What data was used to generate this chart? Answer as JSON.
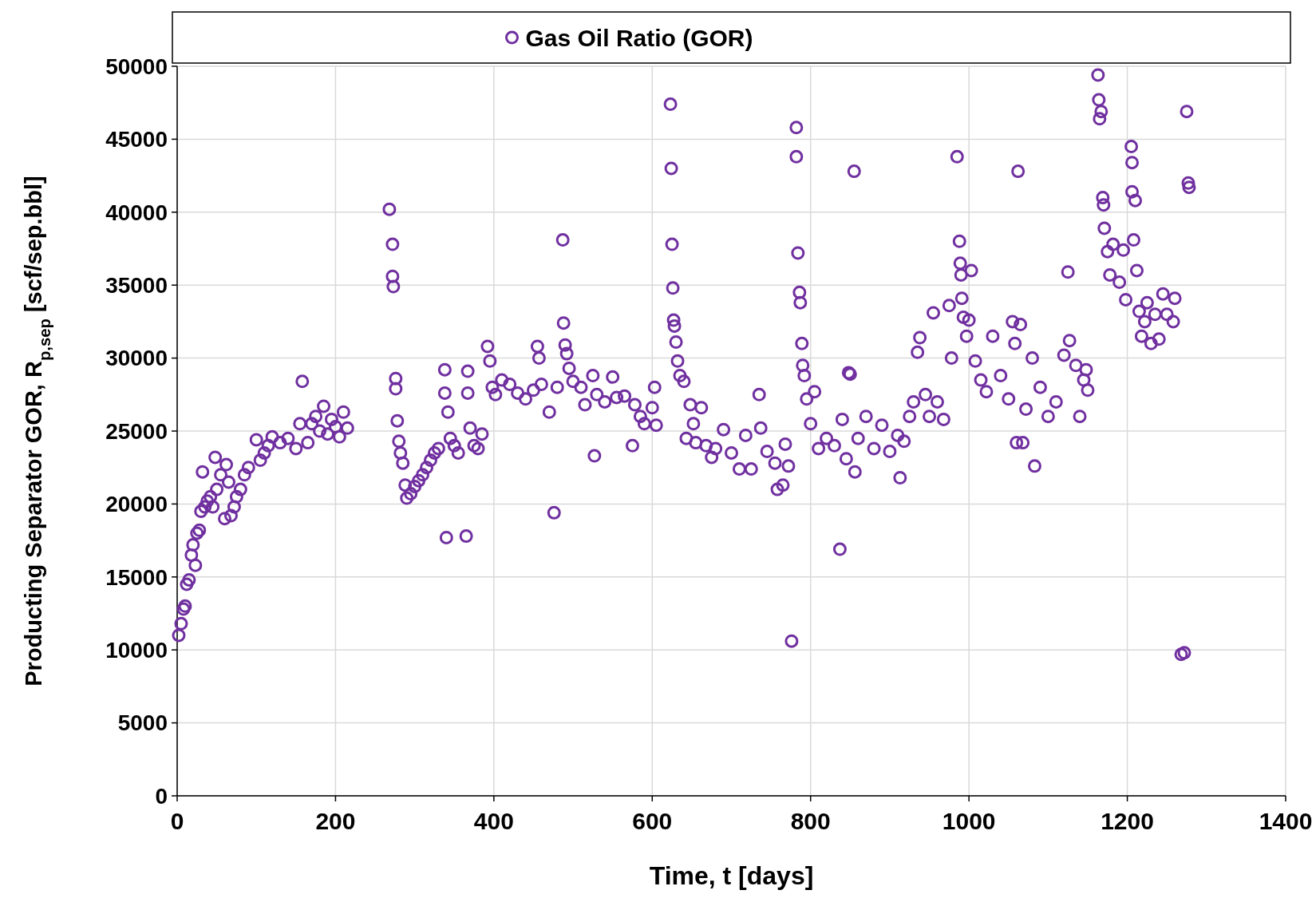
{
  "chart_data": {
    "type": "scatter",
    "xlabel": "Time, t [days]",
    "ylabel": "Producting Separator GOR, R$_{p,sep}$ [scf/sep.bbl]",
    "xlim": [
      0,
      1400
    ],
    "xticks": [
      0,
      200,
      400,
      600,
      800,
      1000,
      1200,
      1400
    ],
    "ylim": [
      0,
      50000
    ],
    "yticks": [
      0,
      5000,
      10000,
      15000,
      20000,
      25000,
      30000,
      35000,
      40000,
      45000,
      50000
    ],
    "grid": true,
    "legend": "top",
    "marker": "circle",
    "series": [
      {
        "name": "Gas Oil Ratio (GOR)",
        "color": "#7030a0",
        "x": [
          2,
          5,
          8,
          10,
          12,
          15,
          18,
          20,
          23,
          25,
          28,
          30,
          32,
          35,
          38,
          42,
          45,
          48,
          50,
          55,
          60,
          62,
          65,
          68,
          72,
          75,
          80,
          85,
          90,
          100,
          105,
          110,
          115,
          120,
          130,
          140,
          150,
          155,
          158,
          165,
          170,
          175,
          180,
          185,
          190,
          195,
          200,
          205,
          210,
          215,
          268,
          272,
          272,
          273,
          276,
          276,
          278,
          280,
          282,
          285,
          288,
          290,
          295,
          300,
          305,
          310,
          315,
          320,
          325,
          330,
          338,
          338,
          340,
          342,
          345,
          350,
          355,
          365,
          367,
          367,
          370,
          375,
          380,
          385,
          392,
          395,
          398,
          402,
          410,
          420,
          430,
          440,
          450,
          455,
          457,
          460,
          470,
          476,
          480,
          487,
          488,
          490,
          492,
          495,
          500,
          510,
          515,
          525,
          527,
          530,
          540,
          550,
          555,
          565,
          575,
          578,
          585,
          590,
          600,
          603,
          605,
          623,
          624,
          625,
          626,
          627,
          628,
          630,
          632,
          635,
          640,
          643,
          648,
          652,
          655,
          662,
          668,
          675,
          680,
          690,
          700,
          710,
          718,
          725,
          735,
          737,
          745,
          755,
          758,
          765,
          768,
          772,
          776,
          782,
          782,
          784,
          786,
          787,
          789,
          790,
          792,
          795,
          800,
          805,
          810,
          820,
          830,
          837,
          840,
          845,
          848,
          850,
          855,
          856,
          860,
          870,
          880,
          890,
          900,
          910,
          913,
          918,
          925,
          930,
          935,
          938,
          945,
          950,
          955,
          960,
          968,
          975,
          978,
          985,
          988,
          989,
          990,
          991,
          993,
          997,
          1000,
          1003,
          1008,
          1015,
          1022,
          1030,
          1040,
          1050,
          1055,
          1058,
          1060,
          1062,
          1065,
          1068,
          1072,
          1080,
          1083,
          1090,
          1100,
          1110,
          1120,
          1125,
          1127,
          1135,
          1140,
          1145,
          1148,
          1150,
          1163,
          1164,
          1165,
          1167,
          1169,
          1170,
          1171,
          1175,
          1178,
          1182,
          1190,
          1195,
          1198,
          1205,
          1206,
          1206,
          1208,
          1210,
          1212,
          1215,
          1218,
          1222,
          1225,
          1230,
          1235,
          1240,
          1245,
          1250,
          1258,
          1260,
          1268,
          1272,
          1275,
          1277,
          1278
        ],
        "values": [
          11000,
          11800,
          12800,
          13000,
          14500,
          14800,
          16500,
          17200,
          15800,
          18000,
          18200,
          19500,
          22200,
          19800,
          20200,
          20500,
          19800,
          23200,
          21000,
          22000,
          19000,
          22700,
          21500,
          19200,
          19800,
          20500,
          21000,
          22000,
          22500,
          24400,
          23000,
          23500,
          24000,
          24600,
          24200,
          24500,
          23800,
          25500,
          28400,
          24200,
          25500,
          26000,
          25000,
          26700,
          24800,
          25800,
          25300,
          24600,
          26300,
          25200,
          40200,
          37800,
          35600,
          34900,
          28600,
          27900,
          25700,
          24300,
          23500,
          22800,
          21300,
          20400,
          20700,
          21200,
          21600,
          22000,
          22500,
          23000,
          23500,
          23800,
          29200,
          27600,
          17700,
          26300,
          24500,
          24000,
          23500,
          17800,
          29100,
          27600,
          25200,
          24000,
          23800,
          24800,
          30800,
          29800,
          28000,
          27500,
          28500,
          28200,
          27600,
          27200,
          27800,
          30800,
          30000,
          28200,
          26300,
          19400,
          28000,
          38100,
          32400,
          30900,
          30300,
          29300,
          28400,
          28000,
          26800,
          28800,
          23300,
          27500,
          27000,
          28700,
          27300,
          27400,
          24000,
          26800,
          26000,
          25500,
          26600,
          28000,
          25400,
          47400,
          43000,
          37800,
          34800,
          32600,
          32200,
          31100,
          29800,
          28800,
          28400,
          24500,
          26800,
          25500,
          24200,
          26600,
          24000,
          23200,
          23800,
          25100,
          23500,
          22400,
          24700,
          22400,
          27500,
          25200,
          23600,
          22800,
          21000,
          21300,
          24100,
          22600,
          10600,
          45800,
          43800,
          37200,
          34500,
          33800,
          31000,
          29500,
          28800,
          27200,
          25500,
          27700,
          23800,
          24500,
          24000,
          16900,
          25800,
          23100,
          29000,
          28900,
          42800,
          22200,
          24500,
          26000,
          23800,
          25400,
          23600,
          24700,
          21800,
          24300,
          26000,
          27000,
          30400,
          31400,
          27500,
          26000,
          33100,
          27000,
          25800,
          33600,
          30000,
          43800,
          38000,
          36500,
          35700,
          34100,
          32800,
          31500,
          32600,
          36000,
          29800,
          28500,
          27700,
          31500,
          28800,
          27200,
          32500,
          31000,
          24200,
          42800,
          32300,
          24200,
          26500,
          30000,
          22600,
          28000,
          26000,
          27000,
          30200,
          35900,
          31200,
          29500,
          26000,
          28500,
          29200,
          27800,
          49400,
          47700,
          46400,
          46900,
          41000,
          40500,
          38900,
          37300,
          35700,
          37800,
          35200,
          37400,
          34000,
          44500,
          43400,
          41400,
          38100,
          40800,
          36000,
          33200,
          31500,
          32500,
          33800,
          31000,
          33000,
          31300,
          34400,
          33000,
          32500,
          34100,
          9700,
          9800,
          46900,
          42000,
          41700
        ]
      }
    ]
  }
}
